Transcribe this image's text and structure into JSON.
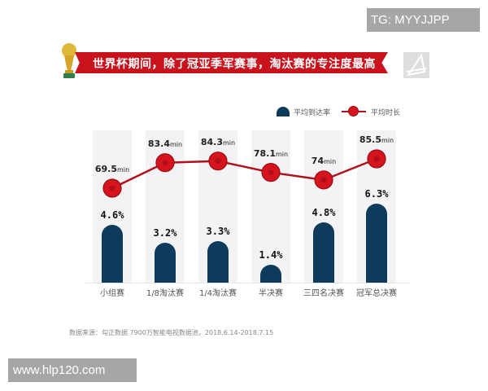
{
  "watermarks": {
    "top_right": "TG: MYYJJPP",
    "bottom_left": "www.hlp120.com"
  },
  "header": {
    "title": "世界杯期间，除了冠亚季军赛事，淘汰赛的专注度最高",
    "icons": [
      "trophy-icon",
      "logo-icon"
    ]
  },
  "legend": {
    "bar_label": "平均到达率",
    "line_label": "平均时长"
  },
  "source": "数据来源：勾正数据 7900万智能电视数据池，2018.6.14-2018.7.15",
  "colors": {
    "bar": "#0e3a5c",
    "line": "#b0101c",
    "marker": "#d5141e",
    "banner": "#c8121c",
    "column_bg": "#f3f3f5"
  },
  "chart_data": {
    "type": "bar",
    "title": "世界杯期间，除了冠亚季军赛事，淘汰赛的专注度最高",
    "categories": [
      "小组赛",
      "1/8淘汰赛",
      "1/4淘汰赛",
      "半决赛",
      "三四名决赛",
      "冠军总决赛"
    ],
    "series": [
      {
        "name": "平均到达率",
        "type": "bar",
        "unit": "%",
        "values": [
          4.6,
          3.2,
          3.3,
          1.4,
          4.8,
          6.3
        ],
        "labels": [
          "4.6%",
          "3.2%",
          "3.3%",
          "1.4%",
          "4.8%",
          "6.3%"
        ]
      },
      {
        "name": "平均时长",
        "type": "line",
        "unit": "min",
        "values": [
          69.5,
          83.4,
          84.3,
          78.1,
          74,
          85.5
        ],
        "labels": [
          "69.5",
          "83.4",
          "84.3",
          "78.1",
          "74",
          "85.5"
        ]
      }
    ],
    "unit_suffix": "min",
    "xlabel": "",
    "ylabel": "",
    "grid": false,
    "legend_position": "top-right",
    "note": "数据来源：勾正数据 7900万智能电视数据池，2018.6.14-2018.7.15"
  }
}
